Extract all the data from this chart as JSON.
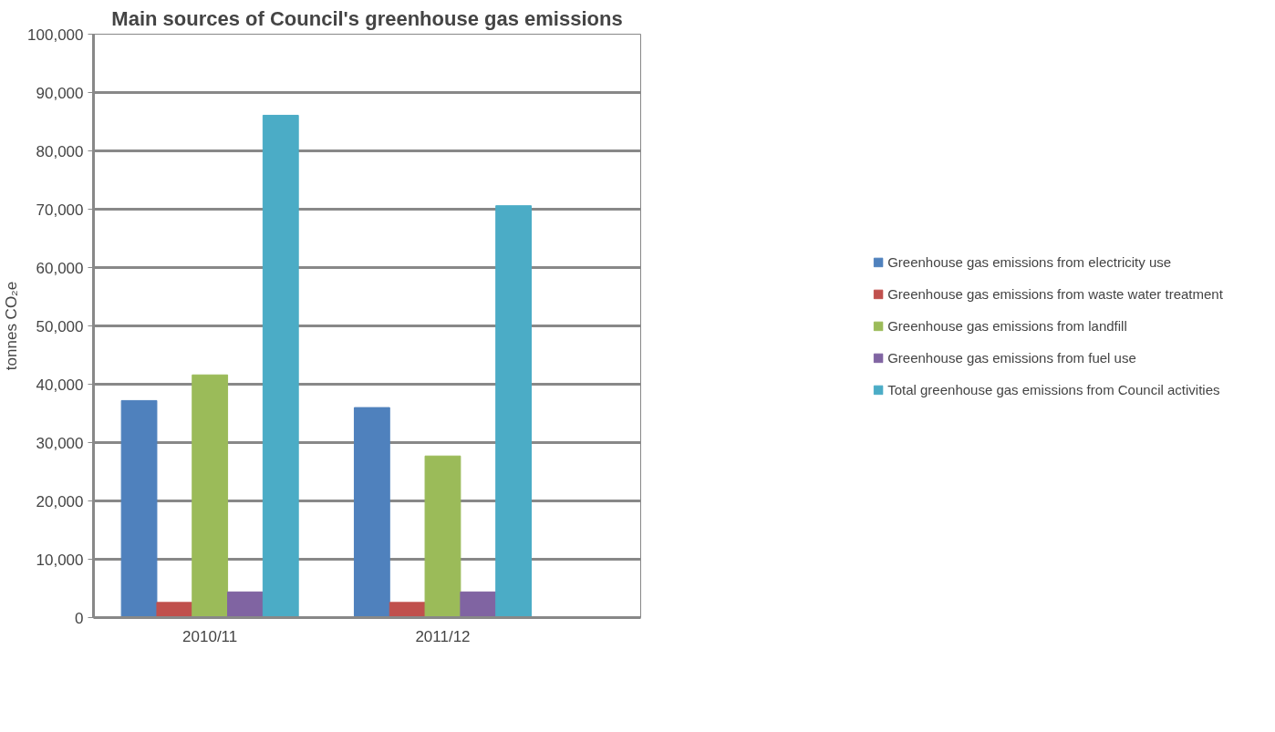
{
  "chart_data": {
    "type": "bar",
    "title": "Main sources of Council's greenhouse gas emissions",
    "ylabel": "tonnes CO₂e",
    "categories": [
      "2010/11",
      "2011/12"
    ],
    "series": [
      {
        "name": "Greenhouse gas emissions from electricity use",
        "color": "#4f81bd",
        "values": [
          37200,
          36000
        ]
      },
      {
        "name": "Greenhouse gas emissions from waste water treatment",
        "color": "#c0504d",
        "values": [
          2600,
          2600
        ]
      },
      {
        "name": "Greenhouse gas emissions from landfill",
        "color": "#9bbb59",
        "values": [
          41600,
          27700
        ]
      },
      {
        "name": "Greenhouse gas emissions from fuel use",
        "color": "#8064a2",
        "values": [
          4400,
          4400
        ]
      },
      {
        "name": "Total greenhouse gas emissions from Council activities",
        "color": "#4bacc6",
        "values": [
          86100,
          70600
        ]
      }
    ],
    "ylim": [
      0,
      100000
    ],
    "yticks": [
      {
        "value": 0,
        "label": "0"
      },
      {
        "value": 10000,
        "label": "10,000"
      },
      {
        "value": 20000,
        "label": "20,000"
      },
      {
        "value": 30000,
        "label": "30,000"
      },
      {
        "value": 40000,
        "label": "40,000"
      },
      {
        "value": 50000,
        "label": "50,000"
      },
      {
        "value": 60000,
        "label": "60,000"
      },
      {
        "value": 70000,
        "label": "70,000"
      },
      {
        "value": 80000,
        "label": "80,000"
      },
      {
        "value": 90000,
        "label": "90,000"
      },
      {
        "value": 100000,
        "label": "100,000"
      }
    ],
    "grid": "y",
    "legend": "right"
  }
}
